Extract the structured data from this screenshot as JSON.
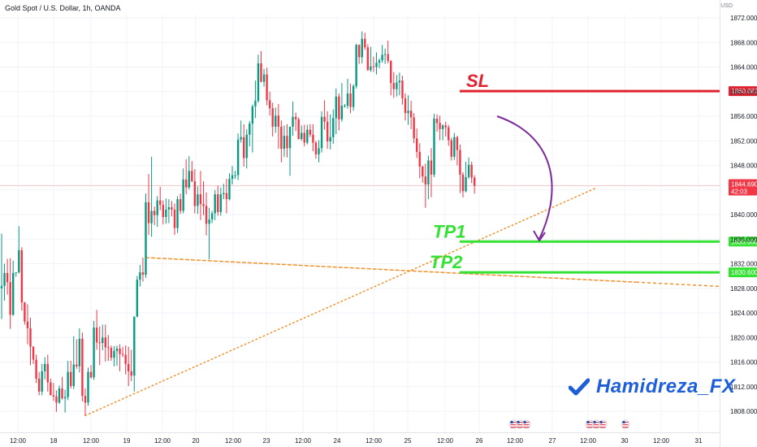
{
  "header": {
    "title": "Gold Spot / U.S. Dollar, 1h, OANDA",
    "currency": "USD"
  },
  "chart_data": {
    "type": "candlestick",
    "symbol": "Gold Spot / U.S. Dollar",
    "interval": "1h",
    "source": "OANDA",
    "ylim": [
      1806,
      1872
    ],
    "y_ticks": [
      1808,
      1812,
      1816,
      1820,
      1824,
      1828,
      1832,
      1836,
      1840,
      1844,
      1848,
      1852,
      1856,
      1860,
      1864,
      1868,
      1872
    ],
    "x_ticks": [
      "12:00",
      "18",
      "12:00",
      "19",
      "12:00",
      "20",
      "12:00",
      "23",
      "12:00",
      "24",
      "12:00",
      "25",
      "12:00",
      "26",
      "12:00",
      "27",
      "12:00",
      "30",
      "12:00",
      "31"
    ],
    "current_price": {
      "value": "1844.690",
      "countdown": "42:03"
    },
    "levels": [
      {
        "label": "SL",
        "price": 1860.081,
        "price_text": "1860.081",
        "color": "#e0222e"
      },
      {
        "label": "TP1",
        "price": 1835.6,
        "price_text": "1835.600",
        "color": "#33e233"
      },
      {
        "label": "TP2",
        "price": 1830.6,
        "price_text": "1830.600",
        "color": "#33e233"
      }
    ],
    "trendlines": [
      {
        "name": "rising support",
        "from": {
          "bar": 29,
          "price": 1807.3
        },
        "to": {
          "bar": 206,
          "price": 1844.3
        }
      },
      {
        "name": "descending line",
        "from": {
          "bar": 50,
          "price": 1833.0
        },
        "to": {
          "bar": 220,
          "price": 1829.0
        }
      }
    ],
    "candles": [
      [
        1828.0,
        1836.9,
        1823.0,
        1828.4
      ],
      [
        1828.4,
        1832.0,
        1826.0,
        1830.5
      ],
      [
        1830.5,
        1832.8,
        1827.0,
        1829.0
      ],
      [
        1829.0,
        1832.9,
        1821.4,
        1823.7
      ],
      [
        1823.7,
        1832.5,
        1823.5,
        1830.5
      ],
      [
        1830.5,
        1830.5,
        1829.9,
        1830.6
      ],
      [
        1830.6,
        1838.1,
        1830.4,
        1834.2
      ],
      [
        1834.2,
        1834.7,
        1824.4,
        1825.7
      ],
      [
        1825.7,
        1825.8,
        1822.1,
        1822.6
      ],
      [
        1822.6,
        1825.4,
        1818.9,
        1821.5
      ],
      [
        1821.5,
        1823.2,
        1815.5,
        1818.5
      ],
      [
        1818.5,
        1818.6,
        1815.7,
        1816.4
      ],
      [
        1816.4,
        1817.2,
        1812.6,
        1813.3
      ],
      [
        1813.3,
        1814.4,
        1810.6,
        1811.2
      ],
      [
        1811.2,
        1815.7,
        1810.6,
        1814.5
      ],
      [
        1814.5,
        1816.8,
        1813.2,
        1815.7
      ],
      [
        1815.7,
        1817.2,
        1811.2,
        1812.7
      ],
      [
        1812.7,
        1813.3,
        1810.6,
        1810.6
      ],
      [
        1810.6,
        1812.6,
        1809.7,
        1810.4
      ],
      [
        1810.4,
        1811.4,
        1807.9,
        1809.4
      ],
      [
        1809.4,
        1812.2,
        1809.2,
        1811.7
      ],
      [
        1811.7,
        1813.6,
        1809.9,
        1810.1
      ],
      [
        1810.1,
        1811.5,
        1807.8,
        1810.3
      ],
      [
        1810.3,
        1816.2,
        1809.8,
        1814.4
      ],
      [
        1814.4,
        1816.2,
        1811.7,
        1812.1
      ],
      [
        1812.1,
        1820.2,
        1811.6,
        1815.6
      ],
      [
        1815.6,
        1819.7,
        1814.9,
        1815.3
      ],
      [
        1815.3,
        1821.5,
        1814.3,
        1819.8
      ],
      [
        1819.8,
        1820.8,
        1809.6,
        1810.5
      ],
      [
        1810.5,
        1811.7,
        1807.3,
        1809.4
      ],
      [
        1809.4,
        1815.1,
        1808.9,
        1814.4
      ],
      [
        1814.4,
        1815.5,
        1813.3,
        1813.5
      ],
      [
        1813.5,
        1822.7,
        1813.1,
        1821.6
      ],
      [
        1821.6,
        1824.5,
        1818.0,
        1819.2
      ],
      [
        1819.2,
        1821.8,
        1815.5,
        1819.1
      ],
      [
        1819.1,
        1822.1,
        1817.9,
        1820.0
      ],
      [
        1820.0,
        1822.1,
        1816.1,
        1818.4
      ],
      [
        1818.4,
        1820.4,
        1816.2,
        1818.3
      ],
      [
        1818.3,
        1818.7,
        1816.2,
        1816.7
      ],
      [
        1816.7,
        1818.6,
        1815.3,
        1817.8
      ],
      [
        1817.8,
        1818.7,
        1815.4,
        1818.2
      ],
      [
        1818.2,
        1818.9,
        1814.5,
        1817.3
      ],
      [
        1817.3,
        1818.5,
        1816.8,
        1817.2
      ],
      [
        1817.2,
        1818.7,
        1814.0,
        1815.7
      ],
      [
        1815.7,
        1818.5,
        1812.1,
        1814.5
      ],
      [
        1814.5,
        1818.0,
        1812.9,
        1813.8
      ],
      [
        1813.8,
        1823.4,
        1811.2,
        1823.4
      ],
      [
        1823.4,
        1830.0,
        1823.3,
        1829.4
      ],
      [
        1829.4,
        1831.8,
        1828.3,
        1830.6
      ],
      [
        1830.6,
        1833.0,
        1829.1,
        1830.2
      ],
      [
        1830.2,
        1843.4,
        1829.7,
        1842.0
      ],
      [
        1842.0,
        1846.6,
        1836.7,
        1838.6
      ],
      [
        1838.6,
        1849.4,
        1836.4,
        1840.6
      ],
      [
        1840.6,
        1841.3,
        1838.3,
        1839.9
      ],
      [
        1839.9,
        1843.0,
        1838.0,
        1842.3
      ],
      [
        1842.3,
        1844.5,
        1840.7,
        1841.6
      ],
      [
        1841.6,
        1842.3,
        1838.4,
        1839.6
      ],
      [
        1839.6,
        1842.6,
        1838.5,
        1840.8
      ],
      [
        1840.8,
        1842.5,
        1838.6,
        1841.2
      ],
      [
        1841.2,
        1842.2,
        1839.7,
        1840.8
      ],
      [
        1840.8,
        1841.8,
        1836.7,
        1837.8
      ],
      [
        1837.8,
        1843.0,
        1837.0,
        1842.5
      ],
      [
        1842.5,
        1843.4,
        1840.1,
        1840.6
      ],
      [
        1840.6,
        1847.5,
        1840.2,
        1845.7
      ],
      [
        1845.7,
        1849.0,
        1843.3,
        1844.4
      ],
      [
        1844.4,
        1849.5,
        1844.1,
        1847.1
      ],
      [
        1847.1,
        1848.7,
        1845.3,
        1845.4
      ],
      [
        1845.4,
        1847.4,
        1840.2,
        1841.4
      ],
      [
        1841.4,
        1844.6,
        1840.1,
        1843.3
      ],
      [
        1843.3,
        1847.1,
        1839.1,
        1841.7
      ],
      [
        1841.7,
        1845.4,
        1839.9,
        1841.4
      ],
      [
        1841.4,
        1843.6,
        1836.6,
        1838.5
      ],
      [
        1838.5,
        1841.1,
        1832.7,
        1839.2
      ],
      [
        1839.2,
        1840.6,
        1838.6,
        1840.2
      ],
      [
        1840.2,
        1844.0,
        1839.1,
        1843.3
      ],
      [
        1843.3,
        1844.7,
        1839.8,
        1840.4
      ],
      [
        1840.4,
        1844.4,
        1839.8,
        1843.3
      ],
      [
        1843.3,
        1845.0,
        1842.5,
        1843.5
      ],
      [
        1843.5,
        1845.8,
        1840.2,
        1842.5
      ],
      [
        1842.5,
        1846.7,
        1842.3,
        1845.8
      ],
      [
        1845.8,
        1847.9,
        1844.9,
        1846.4
      ],
      [
        1846.4,
        1847.1,
        1845.8,
        1846.4
      ],
      [
        1846.4,
        1853.2,
        1845.6,
        1852.2
      ],
      [
        1852.2,
        1855.3,
        1851.7,
        1852.6
      ],
      [
        1852.6,
        1854.7,
        1847.8,
        1849.2
      ],
      [
        1849.2,
        1853.9,
        1847.5,
        1853.0
      ],
      [
        1853.0,
        1855.2,
        1851.1,
        1854.8
      ],
      [
        1854.8,
        1857.9,
        1850.1,
        1857.6
      ],
      [
        1857.6,
        1861.8,
        1855.7,
        1858.5
      ],
      [
        1858.5,
        1866.0,
        1858.2,
        1864.6
      ],
      [
        1864.6,
        1866.6,
        1861.5,
        1861.6
      ],
      [
        1861.6,
        1863.7,
        1860.8,
        1862.8
      ],
      [
        1862.8,
        1863.9,
        1857.8,
        1858.6
      ],
      [
        1858.6,
        1860.0,
        1856.1,
        1857.3
      ],
      [
        1857.3,
        1858.2,
        1852.7,
        1854.3
      ],
      [
        1854.3,
        1857.4,
        1853.3,
        1856.1
      ],
      [
        1856.1,
        1858.0,
        1850.7,
        1854.3
      ],
      [
        1854.3,
        1855.3,
        1848.5,
        1850.7
      ],
      [
        1850.7,
        1854.5,
        1849.4,
        1852.8
      ],
      [
        1852.8,
        1854.7,
        1849.3,
        1850.8
      ],
      [
        1850.8,
        1853.9,
        1846.3,
        1854.3
      ],
      [
        1854.3,
        1858.4,
        1852.8,
        1855.9
      ],
      [
        1855.9,
        1856.6,
        1853.6,
        1855.5
      ],
      [
        1855.5,
        1855.8,
        1852.2,
        1852.3
      ],
      [
        1852.3,
        1854.5,
        1852.0,
        1853.3
      ],
      [
        1853.3,
        1854.6,
        1851.1,
        1851.7
      ],
      [
        1851.7,
        1854.6,
        1851.4,
        1853.8
      ],
      [
        1853.8,
        1854.7,
        1852.6,
        1853.0
      ],
      [
        1853.0,
        1854.7,
        1850.3,
        1851.7
      ],
      [
        1851.7,
        1852.0,
        1849.1,
        1849.8
      ],
      [
        1849.8,
        1852.1,
        1848.5,
        1850.8
      ],
      [
        1850.8,
        1856.8,
        1850.1,
        1855.9
      ],
      [
        1855.9,
        1858.6,
        1853.8,
        1855.1
      ],
      [
        1855.1,
        1856.8,
        1850.7,
        1851.9
      ],
      [
        1851.9,
        1856.3,
        1850.6,
        1852.6
      ],
      [
        1852.6,
        1857.1,
        1851.5,
        1855.7
      ],
      [
        1855.7,
        1860.5,
        1853.1,
        1859.2
      ],
      [
        1859.2,
        1859.7,
        1853.7,
        1855.5
      ],
      [
        1855.5,
        1861.4,
        1855.1,
        1857.7
      ],
      [
        1857.7,
        1858.0,
        1857.4,
        1857.7
      ],
      [
        1857.7,
        1862.1,
        1857.2,
        1859.7
      ],
      [
        1859.7,
        1861.3,
        1856.5,
        1857.5
      ],
      [
        1857.5,
        1861.2,
        1856.9,
        1860.9
      ],
      [
        1860.9,
        1867.8,
        1860.5,
        1867.6
      ],
      [
        1867.6,
        1867.7,
        1864.5,
        1865.6
      ],
      [
        1865.6,
        1869.8,
        1864.6,
        1868.6
      ],
      [
        1868.6,
        1869.6,
        1866.8,
        1867.2
      ],
      [
        1867.2,
        1867.7,
        1863.4,
        1863.5
      ],
      [
        1863.5,
        1867.3,
        1863.2,
        1864.1
      ],
      [
        1864.1,
        1865.7,
        1863.2,
        1864.0
      ],
      [
        1864.0,
        1866.4,
        1862.8,
        1864.7
      ],
      [
        1864.7,
        1865.4,
        1863.8,
        1865.1
      ],
      [
        1865.1,
        1867.6,
        1864.7,
        1866.0
      ],
      [
        1866.0,
        1867.0,
        1864.5,
        1866.1
      ],
      [
        1866.1,
        1868.3,
        1864.6,
        1865.0
      ],
      [
        1865.0,
        1865.1,
        1859.4,
        1861.4
      ],
      [
        1861.4,
        1863.2,
        1859.0,
        1860.4
      ],
      [
        1860.4,
        1862.7,
        1859.2,
        1861.5
      ],
      [
        1861.5,
        1863.1,
        1859.4,
        1861.8
      ],
      [
        1861.8,
        1862.6,
        1857.9,
        1858.9
      ],
      [
        1858.9,
        1859.7,
        1855.3,
        1856.5
      ],
      [
        1856.5,
        1859.4,
        1854.6,
        1856.9
      ],
      [
        1856.9,
        1858.5,
        1853.9,
        1855.8
      ],
      [
        1855.8,
        1856.5,
        1851.6,
        1852.4
      ],
      [
        1852.4,
        1854.0,
        1849.2,
        1850.2
      ],
      [
        1850.2,
        1851.6,
        1845.9,
        1847.8
      ],
      [
        1847.8,
        1848.0,
        1845.2,
        1846.2
      ],
      [
        1846.2,
        1848.3,
        1841.1,
        1844.9
      ],
      [
        1844.9,
        1849.6,
        1842.5,
        1848.8
      ],
      [
        1848.8,
        1850.8,
        1842.8,
        1846.5
      ],
      [
        1846.5,
        1856.4,
        1846.1,
        1855.6
      ],
      [
        1855.6,
        1856.3,
        1853.5,
        1854.9
      ],
      [
        1854.9,
        1856.1,
        1852.1,
        1853.9
      ],
      [
        1853.9,
        1854.7,
        1852.1,
        1854.5
      ],
      [
        1854.5,
        1855.1,
        1852.7,
        1854.2
      ],
      [
        1854.2,
        1854.6,
        1851.2,
        1852.1
      ],
      [
        1852.1,
        1852.5,
        1848.8,
        1849.4
      ],
      [
        1849.4,
        1853.3,
        1848.9,
        1852.6
      ],
      [
        1852.6,
        1852.8,
        1848.0,
        1850.5
      ],
      [
        1850.5,
        1851.4,
        1843.5,
        1846.5
      ],
      [
        1846.5,
        1846.9,
        1842.8,
        1843.8
      ],
      [
        1843.8,
        1848.6,
        1843.6,
        1846.1
      ],
      [
        1846.1,
        1849.3,
        1845.8,
        1848.1
      ],
      [
        1848.1,
        1848.6,
        1845.1,
        1846.0
      ],
      [
        1846.0,
        1846.4,
        1843.4,
        1844.7
      ]
    ]
  },
  "brand": {
    "name": "Hamidreza_FX",
    "check_color": "#1e5fd9"
  },
  "colors": {
    "up": "#089981",
    "down": "#f23645",
    "sl": "#e0222e",
    "tp": "#33e233",
    "trend": "#f0922b",
    "arrow": "#7a2a9a",
    "current": "#f23645"
  },
  "events": [
    {
      "name": "us-flag-icons-1",
      "count": 3
    },
    {
      "name": "us-flag-icons-2",
      "count": 3
    },
    {
      "name": "us-flag-icon-3",
      "count": 1
    }
  ]
}
